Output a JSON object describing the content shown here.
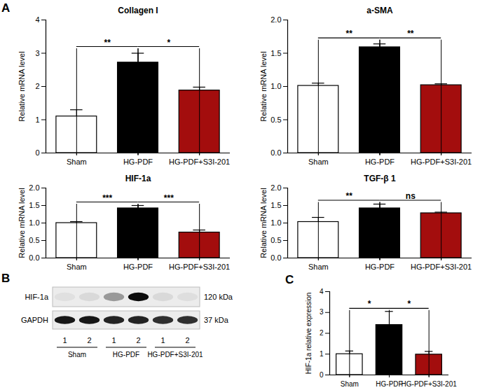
{
  "chart_data": [
    {
      "panel_label": "A",
      "type": "bar",
      "title": "Collagen I",
      "y_label": "Relative mRNA level",
      "categories": [
        "Sham",
        "HG-PDF",
        "HG-PDF+S3I-201"
      ],
      "values": [
        1.1,
        2.72,
        1.88
      ],
      "errors": [
        0.2,
        0.28,
        0.1
      ],
      "colors": [
        "#ffffff",
        "#000000",
        "#a30d0d"
      ],
      "ylim": [
        0,
        4
      ],
      "yticks": [
        0,
        1,
        2,
        3,
        4
      ],
      "comparisons": [
        {
          "groups": [
            "Sham",
            "HG-PDF"
          ],
          "y": 3.2,
          "label": "**"
        },
        {
          "groups": [
            "HG-PDF",
            "HG-PDF+S3I-201"
          ],
          "y": 3.2,
          "label": "*"
        }
      ]
    },
    {
      "type": "bar",
      "title": "a-SMA",
      "y_label": "Relative mRNA level",
      "categories": [
        "Sham",
        "HG-PDF",
        "HG-PDF+S3I-201"
      ],
      "values": [
        1.01,
        1.59,
        1.02
      ],
      "errors": [
        0.04,
        0.05,
        0.02
      ],
      "colors": [
        "#ffffff",
        "#000000",
        "#a30d0d"
      ],
      "ylim": [
        0,
        2
      ],
      "yticks": [
        {
          "value": 0,
          "label": "0.0"
        },
        {
          "value": 0.5,
          "label": "0.5"
        },
        {
          "value": 1,
          "label": "1.0"
        },
        {
          "value": 1.5,
          "label": "1.5"
        },
        {
          "value": 2,
          "label": "2.0"
        }
      ],
      "comparisons": [
        {
          "groups": [
            "Sham",
            "HG-PDF"
          ],
          "y": 1.73,
          "label": "**"
        },
        {
          "groups": [
            "HG-PDF",
            "HG-PDF+S3I-201"
          ],
          "y": 1.73,
          "label": "**"
        }
      ]
    },
    {
      "type": "bar",
      "title": "HIF-1a",
      "y_label": "Relative mRNA level",
      "categories": [
        "Sham",
        "HG-PDF",
        "HG-PDF+S3I-201"
      ],
      "values": [
        1.0,
        1.42,
        0.73
      ],
      "errors": [
        0.04,
        0.08,
        0.07
      ],
      "colors": [
        "#ffffff",
        "#000000",
        "#a30d0d"
      ],
      "ylim": [
        0,
        2
      ],
      "yticks": [
        {
          "value": 0,
          "label": "0.0"
        },
        {
          "value": 0.5,
          "label": "0.5"
        },
        {
          "value": 1,
          "label": "1.0"
        },
        {
          "value": 1.5,
          "label": "1.5"
        },
        {
          "value": 2,
          "label": "2.0"
        }
      ],
      "comparisons": [
        {
          "groups": [
            "Sham",
            "HG-PDF"
          ],
          "y": 1.6,
          "label": "***"
        },
        {
          "groups": [
            "HG-PDF",
            "HG-PDF+S3I-201"
          ],
          "y": 1.6,
          "label": "***"
        }
      ]
    },
    {
      "type": "bar",
      "title": "TGF-β 1",
      "y_label": "Relative mRNA level",
      "categories": [
        "Sham",
        "HG-PDF",
        "HG-PDF+S3I-201"
      ],
      "values": [
        1.03,
        1.42,
        1.28
      ],
      "errors": [
        0.13,
        0.12,
        0.03
      ],
      "colors": [
        "#ffffff",
        "#000000",
        "#a30d0d"
      ],
      "ylim": [
        0,
        2
      ],
      "yticks": [
        {
          "value": 0,
          "label": "0.0"
        },
        {
          "value": 0.5,
          "label": "0.5"
        },
        {
          "value": 1,
          "label": "1.0"
        },
        {
          "value": 1.5,
          "label": "1.5"
        },
        {
          "value": 2,
          "label": "2.0"
        }
      ],
      "comparisons": [
        {
          "groups": [
            "Sham",
            "HG-PDF"
          ],
          "y": 1.65,
          "label": "**"
        },
        {
          "groups": [
            "HG-PDF",
            "HG-PDF+S3I-201"
          ],
          "y": 1.65,
          "label": "ns"
        }
      ]
    },
    {
      "panel_label": "C",
      "type": "bar",
      "y_label": "HIF-1a relative expression",
      "categories": [
        "Sham",
        "HG-PDF",
        "HG-PDF+S3I-201"
      ],
      "values": [
        1.0,
        2.4,
        0.98
      ],
      "errors": [
        0.15,
        0.65,
        0.15
      ],
      "colors": [
        "#ffffff",
        "#000000",
        "#a30d0d"
      ],
      "ylim": [
        0,
        4
      ],
      "yticks": [
        0,
        1,
        2,
        3,
        4
      ],
      "comparisons": [
        {
          "groups": [
            "Sham",
            "HG-PDF"
          ],
          "y": 3.2,
          "label": "*"
        },
        {
          "groups": [
            "HG-PDF",
            "HG-PDF+S3I-201"
          ],
          "y": 3.2,
          "label": "*"
        }
      ]
    }
  ],
  "blot": {
    "panel_label": "B",
    "rows": [
      {
        "label": "HIF-1a",
        "size": "120 kDa",
        "intensity": [
          0.05,
          0.08,
          0.35,
          0.95,
          0.08,
          0.06
        ]
      },
      {
        "label": "GAPDH",
        "size": "37 kDa",
        "intensity": [
          0.9,
          0.9,
          0.85,
          0.85,
          0.8,
          0.8
        ]
      }
    ],
    "groups": [
      {
        "label": "Sham",
        "lanes": [
          "1",
          "2"
        ]
      },
      {
        "label": "HG-PDF",
        "lanes": [
          "1",
          "2"
        ]
      },
      {
        "label": "HG-PDF+S3I-201",
        "lanes": [
          "1",
          "2"
        ]
      }
    ]
  }
}
